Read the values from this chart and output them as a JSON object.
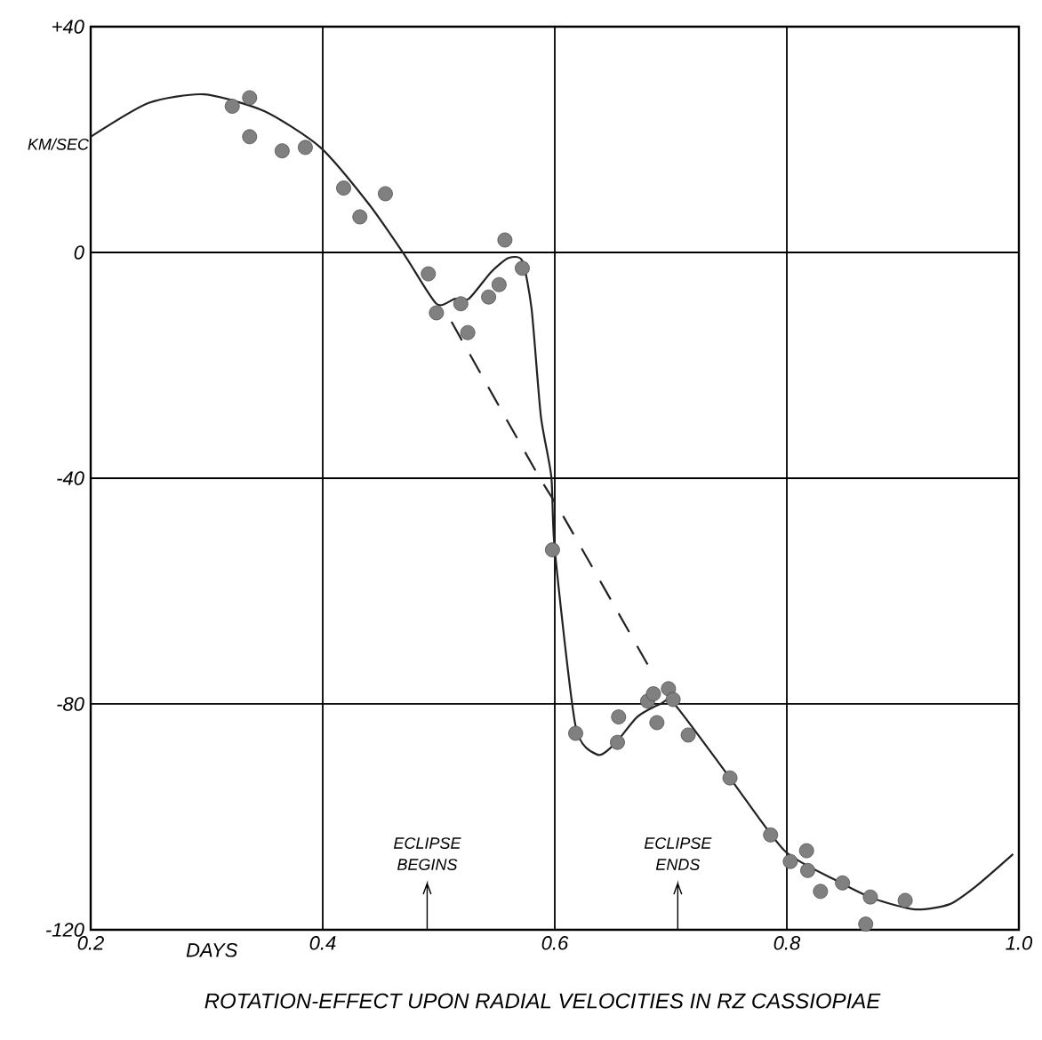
{
  "chart_data": {
    "type": "scatter",
    "title": "ROTATION-EFFECT UPON RADIAL VELOCITIES IN RZ CASSIOPIAE",
    "xlabel": "DAYS",
    "ylabel": "KM/SEC",
    "xlim": [
      0.2,
      1.0
    ],
    "ylim": [
      -120,
      40
    ],
    "xticks": [
      {
        "value": 0.2,
        "label": "0.2"
      },
      {
        "value": 0.4,
        "label": "0.4"
      },
      {
        "value": 0.6,
        "label": "0.6"
      },
      {
        "value": 0.8,
        "label": "0.8"
      },
      {
        "value": 1.0,
        "label": "1.0"
      }
    ],
    "yticks": [
      {
        "value": 40,
        "label": "+40"
      },
      0,
      -40,
      -80,
      -120
    ],
    "grid": true,
    "series": [
      {
        "type": "line",
        "color": "#222222",
        "marker": "none",
        "line_style": "solid",
        "x": [
          0.2,
          0.25,
          0.298,
          0.35,
          0.398,
          0.44,
          0.471,
          0.498,
          0.514,
          0.526,
          0.545,
          0.56,
          0.572,
          0.58,
          0.588,
          0.597,
          0.6,
          0.618,
          0.637,
          0.652,
          0.671,
          0.691,
          0.703,
          0.752,
          0.798,
          0.84,
          0.875,
          0.911,
          0.94,
          0.963,
          0.995
        ],
        "values": [
          20.5,
          26.5,
          28,
          25,
          18.6,
          8.5,
          -0.6,
          -9.1,
          -8.2,
          -8.2,
          -3.5,
          -1,
          -1.5,
          -10,
          -29,
          -39.7,
          -52.7,
          -84,
          -89,
          -87,
          -82.3,
          -80,
          -80,
          -93.4,
          -106,
          -111,
          -114.5,
          -116.4,
          -115.5,
          -112.3,
          -106.6
        ]
      },
      {
        "type": "line",
        "color": "#222222",
        "marker": "none",
        "line_style": "dashed",
        "x": [
          0.511,
          0.583,
          0.608,
          0.68
        ],
        "values": [
          -12.3,
          -38.5,
          -47,
          -73
        ]
      },
      {
        "color": "#808080",
        "marker": "circle",
        "x": [
          0.322,
          0.337,
          0.337,
          0.365,
          0.385,
          0.418,
          0.432,
          0.454,
          0.491,
          0.498,
          0.519,
          0.525,
          0.543,
          0.552,
          0.557,
          0.572,
          0.598,
          0.618,
          0.655,
          0.654,
          0.68,
          0.685,
          0.698,
          0.702,
          0.688,
          0.715,
          0.751,
          0.786,
          0.803,
          0.817,
          0.818,
          0.829,
          0.848,
          0.872,
          0.868,
          0.902
        ],
        "values": [
          25.9,
          27.4,
          20.5,
          18,
          18.6,
          11.4,
          6.3,
          10.4,
          -3.8,
          -10.7,
          -9.1,
          -14.2,
          -7.9,
          -5.7,
          2.2,
          -2.8,
          -52.7,
          -85.2,
          -82.3,
          -86.8,
          -79.5,
          -78.2,
          -77.3,
          -79.2,
          -83.3,
          -85.5,
          -93.1,
          -103.2,
          -107.9,
          -106,
          -109.5,
          -113.2,
          -111.7,
          -114.2,
          -119,
          -114.8
        ]
      }
    ],
    "ref_lines": [
      {
        "axis": "x",
        "value": 0.49,
        "label": "ECLIPSE BEGINS"
      },
      {
        "axis": "x",
        "value": 0.706,
        "label": "ECLIPSE ENDS"
      }
    ]
  }
}
